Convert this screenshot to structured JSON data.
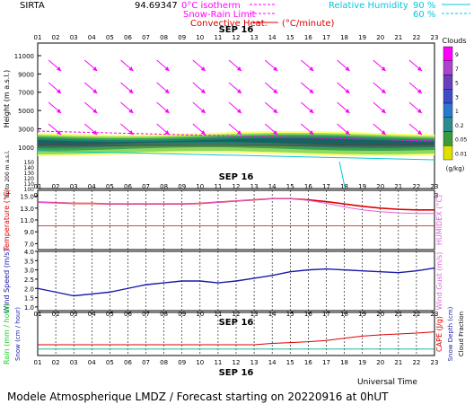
{
  "header": {
    "site": "SIRTA",
    "value_label": "94.69347",
    "legend_items": [
      "0°C isotherm",
      "Snow-Rain Limit",
      "Convective Heat."
    ],
    "legend_unit": "(°C/minute)",
    "rh_label": "Relative Humidity",
    "rh_levels": [
      "90 %",
      "60 %"
    ]
  },
  "date_label": "SEP 16",
  "hours": [
    "01",
    "02",
    "03",
    "04",
    "05",
    "06",
    "07",
    "08",
    "09",
    "10",
    "11",
    "12",
    "13",
    "14",
    "15",
    "16",
    "17",
    "18",
    "19",
    "20",
    "21",
    "22",
    "23"
  ],
  "footer": {
    "universal_time": "Universal Time",
    "caption": "Modele Atmospherique LMDZ / Forecast starting on 20220916 at 0hUT"
  },
  "colors": {
    "magenta": "#ff00ff",
    "cyan": "#00d8e8",
    "red": "#dd0000",
    "blue": "#1a1aa8",
    "green": "#22cc22"
  },
  "chart_data": [
    {
      "type": "heatmap",
      "name": "clouds",
      "ylabel": "Height (m a.s.l.)",
      "ylabel2": "Up to 200 m a.s.l.",
      "yticks_upper": [
        1000,
        3000,
        5000,
        7000,
        9000,
        11000
      ],
      "yticks_lower": [
        100,
        110,
        120,
        130,
        140,
        150
      ],
      "colorbar_title": "Clouds",
      "colorbar_unit": "(g/kg)",
      "colorbar_levels": [
        "9",
        "7",
        "5",
        "3",
        "1",
        "0.2",
        "0.05",
        "0.01"
      ],
      "colorbar_colors": [
        "#ff00ff",
        "#aa44cc",
        "#6a3fbf",
        "#3f4cc8",
        "#2a78d0",
        "#2a8c8c",
        "#3a9a40",
        "#e0e000",
        "#ffffff"
      ]
    },
    {
      "type": "line",
      "name": "temperature",
      "ylabel": "Temperature (°C)",
      "ylabel_right": "HUMIDEX (°C)",
      "yticks": [
        7.0,
        9.0,
        11.0,
        13.0,
        15.0
      ],
      "ylim": [
        6.0,
        16.0
      ],
      "series": [
        {
          "name": "Temperature",
          "values": [
            14.0,
            13.9,
            13.8,
            13.8,
            13.7,
            13.7,
            13.7,
            13.7,
            13.7,
            13.8,
            14.0,
            14.2,
            14.4,
            14.6,
            14.6,
            14.4,
            14.1,
            13.7,
            13.3,
            13.0,
            12.8,
            12.7,
            12.7
          ]
        },
        {
          "name": "HUMIDEX",
          "values": [
            14.0,
            13.9,
            13.8,
            13.8,
            13.7,
            13.7,
            13.7,
            13.7,
            13.7,
            13.8,
            14.0,
            14.2,
            14.4,
            14.6,
            14.6,
            14.3,
            13.8,
            13.2,
            12.7,
            12.4,
            12.2,
            12.1,
            12.1
          ]
        }
      ],
      "reference_line": 10.0
    },
    {
      "type": "line",
      "name": "wind",
      "ylabel": "Wind Speed (m/s)",
      "ylabel_right": "Wind Gust (m/s)",
      "yticks": [
        1.0,
        1.5,
        2.0,
        2.5,
        3.0,
        3.5,
        4.0
      ],
      "ylim": [
        0.8,
        4.0
      ],
      "series": [
        {
          "name": "Wind Speed",
          "values": [
            2.0,
            1.8,
            1.6,
            1.7,
            1.8,
            2.0,
            2.2,
            2.3,
            2.4,
            2.4,
            2.3,
            2.4,
            2.55,
            2.7,
            2.9,
            3.0,
            3.05,
            3.0,
            2.95,
            2.9,
            2.85,
            2.95,
            3.1
          ]
        }
      ]
    },
    {
      "type": "line",
      "name": "precipitation",
      "ylabel": "Rain (mm / hour)",
      "ylabel2": "Snow (cm / hour)",
      "ylabel_right": "CAPE (J/g)",
      "ylabel_right2": "Snow Depth (cm)",
      "ylabel_right3": "Cloud Fraction",
      "series": [
        {
          "name": "CAPE",
          "values": [
            0.25,
            0.25,
            0.25,
            0.25,
            0.25,
            0.25,
            0.25,
            0.25,
            0.25,
            0.25,
            0.25,
            0.25,
            0.25,
            0.28,
            0.3,
            0.32,
            0.35,
            0.4,
            0.45,
            0.48,
            0.5,
            0.52,
            0.55
          ]
        },
        {
          "name": "Snow Depth",
          "values": [
            0.15,
            0.15,
            0.15,
            0.15,
            0.15,
            0.15,
            0.15,
            0.15,
            0.15,
            0.15,
            0.15,
            0.15,
            0.15,
            0.15,
            0.15,
            0.15,
            0.15,
            0.15,
            0.15,
            0.15,
            0.15,
            0.15,
            0.15
          ]
        }
      ],
      "ylim": [
        0,
        1
      ]
    }
  ]
}
